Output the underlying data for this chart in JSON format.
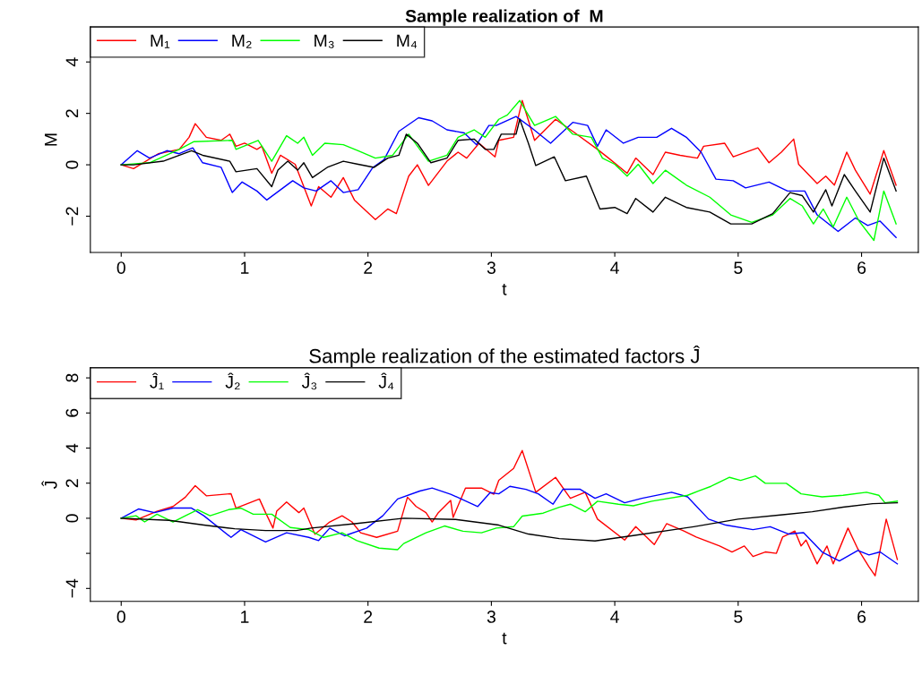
{
  "chart_data": [
    {
      "type": "line",
      "title": "Sample realization of  M",
      "xlabel": "t",
      "ylabel": "M",
      "xlim": [
        -0.25,
        6.46
      ],
      "ylim": [
        -3.41,
        5.36
      ],
      "xticks": [
        0,
        1,
        2,
        3,
        4,
        5,
        6
      ],
      "yticks": [
        -2,
        0,
        2,
        4
      ],
      "legend": "top left",
      "grid": false,
      "marker": "none",
      "line_style": "solid",
      "series": [
        {
          "name": "M₁",
          "color": "#ff0000",
          "x": [
            0,
            0.1,
            0.3,
            0.47,
            0.55,
            0.6,
            0.69,
            0.81,
            0.88,
            0.93,
            1.0,
            1.1,
            1.14,
            1.22,
            1.29,
            1.41,
            1.54,
            1.6,
            1.7,
            1.8,
            1.89,
            2.06,
            2.16,
            2.23,
            2.33,
            2.4,
            2.49,
            2.64,
            2.73,
            2.8,
            2.9,
            3.03,
            3.06,
            3.18,
            3.25,
            3.35,
            3.52,
            3.66,
            3.86,
            3.95,
            4.1,
            4.17,
            4.31,
            4.41,
            4.53,
            4.67,
            4.72,
            4.89,
            4.96,
            5.16,
            5.25,
            5.35,
            5.45,
            5.49,
            5.64,
            5.71,
            5.78,
            5.88,
            5.95,
            6.07,
            6.18,
            6.28
          ],
          "values": [
            0,
            -0.15,
            0.43,
            0.6,
            1.07,
            1.6,
            1.07,
            0.95,
            1.19,
            0.72,
            0.84,
            0.6,
            0.72,
            -0.33,
            0.37,
            0.02,
            -1.6,
            -0.85,
            -1.26,
            -0.5,
            -1.37,
            -2.13,
            -1.72,
            -1.9,
            -0.44,
            0,
            -0.8,
            0.14,
            0.49,
            0.26,
            0.84,
            0.31,
            0.95,
            1.07,
            2.5,
            0.95,
            1.77,
            1.3,
            0.6,
            0.26,
            -0.33,
            0.26,
            -0.38,
            0.49,
            0.37,
            0.26,
            0.72,
            0.84,
            0.31,
            0.66,
            0.08,
            0.49,
            1.0,
            0.02,
            -0.73,
            -0.44,
            -0.79,
            0.49,
            -0.21,
            -1.14,
            0.55,
            -0.79
          ]
        },
        {
          "name": "M₂",
          "color": "#0000ff",
          "x": [
            0,
            0.13,
            0.23,
            0.37,
            0.47,
            0.58,
            0.66,
            0.81,
            0.9,
            0.98,
            1.1,
            1.18,
            1.39,
            1.48,
            1.58,
            1.7,
            1.8,
            1.92,
            2.04,
            2.13,
            2.25,
            2.41,
            2.52,
            2.64,
            2.78,
            2.88,
            2.98,
            3.04,
            3.2,
            3.33,
            3.48,
            3.66,
            3.78,
            3.86,
            3.93,
            4.07,
            4.19,
            4.34,
            4.46,
            4.58,
            4.7,
            4.82,
            4.96,
            5.06,
            5.25,
            5.4,
            5.54,
            5.64,
            5.81,
            5.95,
            6.05,
            6.15,
            6.28
          ],
          "values": [
            0,
            0.55,
            0.26,
            0.55,
            0.43,
            0.66,
            0.08,
            -0.1,
            -1.08,
            -0.67,
            -1.02,
            -1.37,
            -0.62,
            -0.9,
            -1.02,
            -0.62,
            -1.08,
            -0.97,
            -0.1,
            0.2,
            1.3,
            1.83,
            1.71,
            1.36,
            1.24,
            0.78,
            1.53,
            1.53,
            1.88,
            1.42,
            0.84,
            1.65,
            1.53,
            0.72,
            1.36,
            0.84,
            1.07,
            1.07,
            1.42,
            1.07,
            0.49,
            -0.56,
            -0.62,
            -0.9,
            -0.67,
            -1.02,
            -1.02,
            -1.95,
            -2.59,
            -2.07,
            -2.36,
            -2.19,
            -2.83
          ]
        },
        {
          "name": "M₃",
          "color": "#00ff00",
          "x": [
            0,
            0.23,
            0.47,
            0.59,
            0.9,
            0.93,
            1.11,
            1.22,
            1.34,
            1.43,
            1.48,
            1.55,
            1.65,
            1.8,
            1.92,
            2.06,
            2.2,
            2.33,
            2.49,
            2.64,
            2.73,
            2.86,
            2.95,
            3.06,
            3.13,
            3.23,
            3.35,
            3.52,
            3.66,
            3.81,
            3.9,
            4.0,
            4.1,
            4.19,
            4.31,
            4.41,
            4.58,
            4.77,
            4.94,
            5.11,
            5.28,
            5.42,
            5.52,
            5.61,
            5.69,
            5.77,
            5.88,
            5.98,
            6.1,
            6.18,
            6.28
          ],
          "values": [
            0,
            0.08,
            0.6,
            0.9,
            0.95,
            0.6,
            0.95,
            0.14,
            1.13,
            0.84,
            1.07,
            0.37,
            0.84,
            0.78,
            0.55,
            0.26,
            0.37,
            1.19,
            0.14,
            0.37,
            1.07,
            1.36,
            1.07,
            1.77,
            1.94,
            2.5,
            1.53,
            1.88,
            1.19,
            1.07,
            0.26,
            0.02,
            -0.44,
            0.02,
            -0.73,
            -0.21,
            -0.79,
            -1.26,
            -1.95,
            -2.24,
            -1.95,
            -1.31,
            -1.6,
            -2.3,
            -1.72,
            -2.42,
            -1.26,
            -2.19,
            -2.94,
            -1.02,
            -2.3
          ]
        },
        {
          "name": "M₄",
          "color": "#000000",
          "x": [
            0,
            0.1,
            0.34,
            0.57,
            0.66,
            0.88,
            0.93,
            1.1,
            1.22,
            1.27,
            1.35,
            1.43,
            1.48,
            1.55,
            1.67,
            1.8,
            1.92,
            2.05,
            2.16,
            2.25,
            2.31,
            2.4,
            2.51,
            2.64,
            2.73,
            2.86,
            2.95,
            3.02,
            3.08,
            3.2,
            3.23,
            3.3,
            3.36,
            3.51,
            3.6,
            3.77,
            3.88,
            4.0,
            4.1,
            4.17,
            4.31,
            4.41,
            4.58,
            4.77,
            4.94,
            5.11,
            5.28,
            5.42,
            5.52,
            5.61,
            5.71,
            5.76,
            5.86,
            5.95,
            6.07,
            6.18,
            6.28
          ],
          "values": [
            0,
            0,
            0.14,
            0.55,
            0.37,
            0.14,
            -0.27,
            -0.15,
            -0.85,
            -0.21,
            0.14,
            -0.21,
            0.08,
            -0.5,
            -0.1,
            0.14,
            0.02,
            -0.1,
            0.26,
            0.37,
            1.19,
            0.84,
            0.08,
            0.26,
            0.95,
            1.0,
            0.6,
            0.6,
            1.19,
            1.19,
            1.77,
            0.84,
            -0.03,
            0.31,
            -0.62,
            -0.44,
            -1.72,
            -1.66,
            -1.9,
            -1.31,
            -1.84,
            -1.26,
            -1.66,
            -1.84,
            -2.3,
            -2.3,
            -1.9,
            -1.08,
            -1.2,
            -1.84,
            -0.97,
            -1.6,
            -0.38,
            -1.02,
            -1.84,
            0.26,
            -1.02
          ]
        }
      ]
    },
    {
      "type": "line",
      "title": "Sample realization of the estimated factors Ĵ",
      "xlabel": "t",
      "ylabel": "Ĵ",
      "xlim": [
        -0.25,
        6.46
      ],
      "ylim": [
        -4.74,
        8.57
      ],
      "xticks": [
        0,
        1,
        2,
        3,
        4,
        5,
        6
      ],
      "yticks": [
        -4,
        {
          "value": -2,
          "label": null
        },
        0,
        2,
        4,
        6,
        8
      ],
      "legend": "top left",
      "grid": false,
      "marker": "none",
      "line_style": "solid",
      "series": [
        {
          "name": "Ĵ₁",
          "color": "#ff0000",
          "x": [
            0,
            0.12,
            0.29,
            0.42,
            0.52,
            0.6,
            0.69,
            0.89,
            0.93,
            1.12,
            1.17,
            1.23,
            1.26,
            1.34,
            1.44,
            1.48,
            1.57,
            1.69,
            1.79,
            1.87,
            1.94,
            2.07,
            2.24,
            2.32,
            2.39,
            2.47,
            2.52,
            2.57,
            2.67,
            2.69,
            2.79,
            2.92,
            3.02,
            3.06,
            3.18,
            3.25,
            3.36,
            3.52,
            3.64,
            3.76,
            3.86,
            4.08,
            4.17,
            4.32,
            4.42,
            4.56,
            4.66,
            4.85,
            4.95,
            5.05,
            5.12,
            5.22,
            5.31,
            5.36,
            5.46,
            5.51,
            5.55,
            5.64,
            5.72,
            5.77,
            5.89,
            5.97,
            6.06,
            6.11,
            6.2,
            6.24,
            6.29
          ],
          "values": [
            0,
            -0.1,
            0.4,
            0.67,
            1.2,
            1.86,
            1.28,
            1.4,
            0.58,
            1.1,
            0.32,
            -0.56,
            0.4,
            0.93,
            0.32,
            0.58,
            -0.91,
            -0.21,
            0.14,
            -0.21,
            -0.83,
            -1.09,
            -0.74,
            1.2,
            0.67,
            0.32,
            -0.21,
            0.32,
            1.02,
            0.05,
            1.72,
            1.72,
            1.37,
            2.16,
            2.84,
            3.86,
            1.48,
            2.33,
            1.14,
            1.48,
            -0.05,
            -1.24,
            -0.48,
            -1.5,
            -0.31,
            -0.73,
            -1.07,
            -1.58,
            -1.92,
            -1.58,
            -2.18,
            -1.92,
            -2.0,
            -1.07,
            -0.73,
            -1.58,
            -1.24,
            -2.6,
            -1.58,
            -2.6,
            -0.56,
            -1.75,
            -2.77,
            -3.28,
            -0.05,
            -1.07,
            -2.35
          ]
        },
        {
          "name": "Ĵ₂",
          "color": "#0000ff",
          "x": [
            0,
            0.14,
            0.27,
            0.42,
            0.57,
            0.67,
            0.89,
            0.97,
            1.17,
            1.34,
            1.52,
            1.6,
            1.69,
            1.81,
            1.99,
            2.12,
            2.24,
            2.42,
            2.52,
            2.67,
            2.89,
            2.99,
            3.06,
            3.15,
            3.28,
            3.38,
            3.5,
            3.58,
            3.72,
            3.84,
            3.93,
            4.08,
            4.22,
            4.46,
            4.59,
            4.76,
            4.9,
            5.12,
            5.26,
            5.41,
            5.53,
            5.68,
            5.82,
            5.97,
            6.06,
            6.15,
            6.29
          ],
          "values": [
            0,
            0.53,
            0.32,
            0.58,
            0.58,
            0.14,
            -1.09,
            -0.65,
            -1.35,
            -0.83,
            -1.09,
            -1.27,
            -0.56,
            -1.0,
            -0.56,
            0.14,
            1.1,
            1.55,
            1.72,
            1.37,
            0.67,
            1.46,
            1.39,
            1.82,
            1.65,
            1.39,
            0.8,
            1.65,
            1.65,
            1.14,
            1.39,
            0.88,
            1.14,
            1.48,
            1.22,
            -0.05,
            -0.39,
            -0.65,
            -0.48,
            -0.9,
            -0.82,
            -1.92,
            -2.43,
            -1.84,
            -2.09,
            -1.92,
            -2.6
          ]
        },
        {
          "name": "Ĵ₃",
          "color": "#00ff00",
          "x": [
            0,
            0.12,
            0.19,
            0.29,
            0.42,
            0.52,
            0.62,
            0.72,
            0.87,
            0.97,
            1.07,
            1.22,
            1.37,
            1.52,
            1.64,
            1.79,
            1.91,
            2.09,
            2.24,
            2.29,
            2.47,
            2.62,
            2.77,
            2.92,
            3.04,
            3.18,
            3.25,
            3.42,
            3.55,
            3.64,
            3.76,
            3.86,
            4.03,
            4.15,
            4.3,
            4.59,
            4.68,
            4.78,
            4.93,
            5.02,
            5.14,
            5.22,
            5.39,
            5.51,
            5.68,
            5.85,
            6.04,
            6.14,
            6.19,
            6.29
          ],
          "values": [
            0,
            0.14,
            -0.21,
            0.23,
            -0.21,
            0.14,
            0.49,
            0.14,
            0.49,
            0.58,
            0.23,
            0.23,
            -0.53,
            -0.65,
            -1.09,
            -0.83,
            -1.27,
            -1.7,
            -1.79,
            -1.44,
            -0.83,
            -0.44,
            -0.74,
            -0.83,
            -0.56,
            -0.48,
            0.12,
            0.29,
            0.63,
            0.8,
            0.37,
            0.97,
            0.8,
            0.71,
            0.97,
            1.31,
            1.56,
            1.82,
            2.33,
            2.16,
            2.41,
            1.99,
            1.99,
            1.39,
            1.22,
            1.31,
            1.48,
            1.31,
            0.88,
            0.97
          ]
        },
        {
          "name": "Ĵ₄",
          "color": "#000000",
          "x": [
            0,
            0.39,
            0.67,
            0.92,
            1.17,
            1.42,
            1.54,
            1.91,
            2.29,
            2.71,
            3.06,
            3.3,
            3.55,
            3.84,
            4.15,
            4.64,
            5.0,
            5.36,
            5.6,
            5.85,
            6.09,
            6.29
          ],
          "values": [
            0,
            -0.12,
            -0.39,
            -0.6,
            -0.7,
            -0.7,
            -0.56,
            -0.3,
            0,
            -0.07,
            -0.39,
            -0.9,
            -1.16,
            -1.29,
            -0.99,
            -0.48,
            -0.05,
            0.2,
            0.37,
            0.63,
            0.83,
            0.88
          ]
        }
      ]
    }
  ]
}
